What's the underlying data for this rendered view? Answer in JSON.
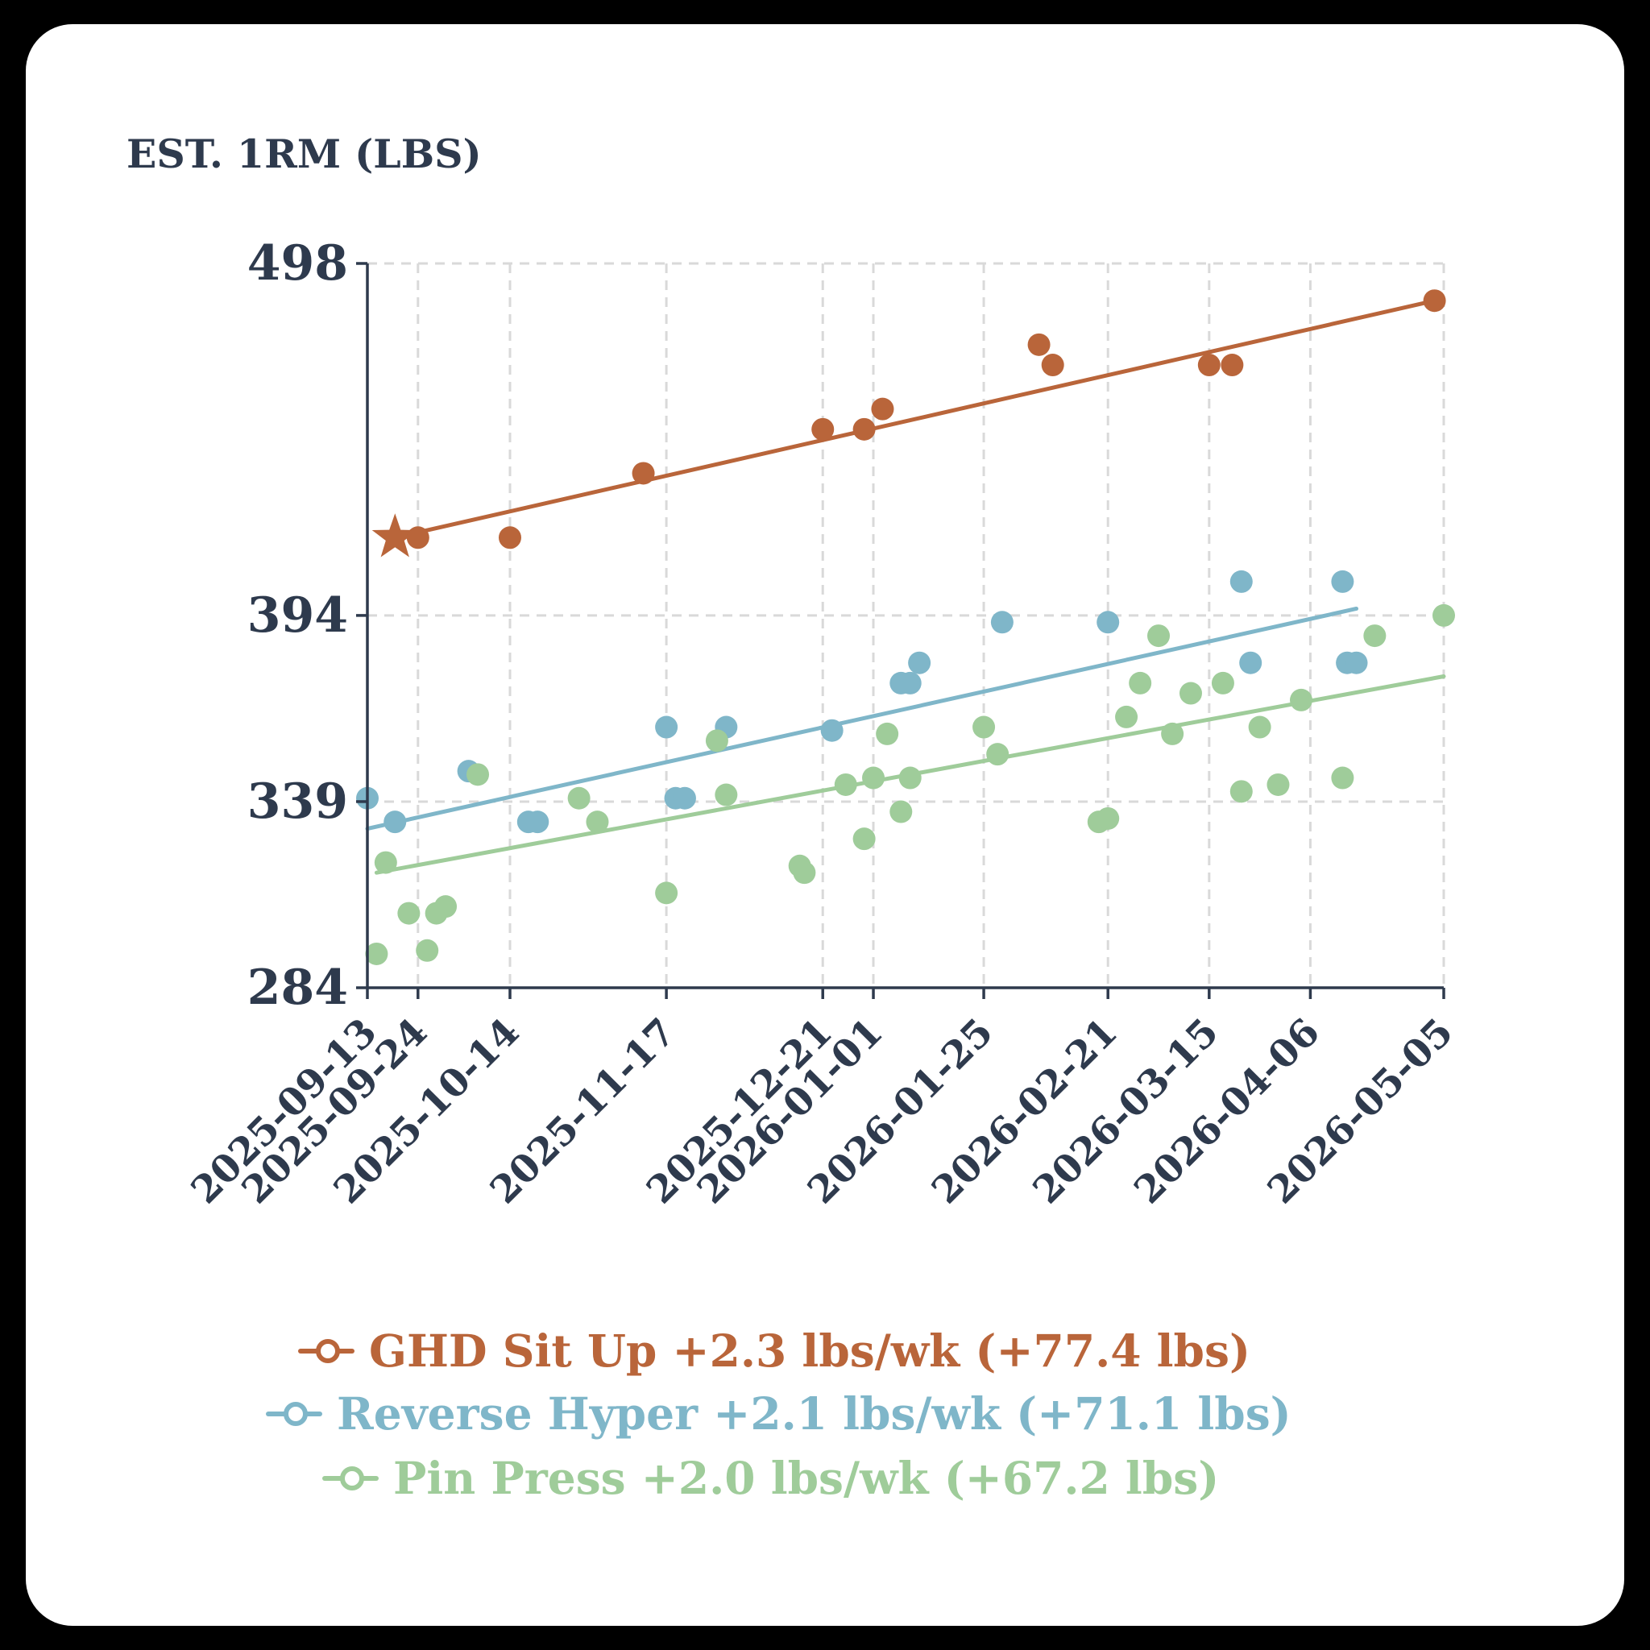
{
  "chart_data": {
    "type": "scatter",
    "ylabel": "EST. 1RM (LBS)",
    "yticks": [
      284,
      339,
      394,
      498
    ],
    "ylim": [
      284,
      498
    ],
    "xlim": [
      "2025-09-13",
      "2026-05-05"
    ],
    "xticks": [
      "2025-09-13",
      "2025-09-24",
      "2025-10-14",
      "2025-11-17",
      "2025-12-21",
      "2026-01-01",
      "2026-01-25",
      "2026-02-21",
      "2026-03-15",
      "2026-04-06",
      "2026-05-05"
    ],
    "grid": true,
    "legend_position": "bottom",
    "series": [
      {
        "name": "GHD Sit Up",
        "legend_label": "GHD Sit Up +2.3 lbs/wk (+77.4 lbs)",
        "color": "#b9653a",
        "highlight_marker": "star",
        "points": [
          [
            "2025-09-19",
            417
          ],
          [
            "2025-09-24",
            417
          ],
          [
            "2025-10-14",
            417
          ],
          [
            "2025-11-12",
            436
          ],
          [
            "2025-12-21",
            449
          ],
          [
            "2025-12-30",
            449
          ],
          [
            "2026-01-03",
            455
          ],
          [
            "2026-02-06",
            474
          ],
          [
            "2026-02-09",
            468
          ],
          [
            "2026-03-15",
            468
          ],
          [
            "2026-03-20",
            468
          ],
          [
            "2026-05-03",
            487
          ]
        ],
        "trend": [
          [
            "2025-09-19",
            417
          ],
          [
            "2026-05-03",
            487
          ]
        ]
      },
      {
        "name": "Reverse Hyper",
        "legend_label": "Reverse Hyper +2.1 lbs/wk (+71.1 lbs)",
        "color": "#7fb6c9",
        "points": [
          [
            "2025-09-13",
            340
          ],
          [
            "2025-09-19",
            333
          ],
          [
            "2025-10-05",
            348
          ],
          [
            "2025-10-18",
            333
          ],
          [
            "2025-10-20",
            333
          ],
          [
            "2025-11-17",
            361
          ],
          [
            "2025-11-19",
            340
          ],
          [
            "2025-11-21",
            340
          ],
          [
            "2025-11-30",
            361
          ],
          [
            "2025-12-23",
            360
          ],
          [
            "2026-01-07",
            374
          ],
          [
            "2026-01-09",
            374
          ],
          [
            "2026-01-11",
            380
          ],
          [
            "2026-01-29",
            392
          ],
          [
            "2026-02-21",
            392
          ],
          [
            "2026-03-22",
            404
          ],
          [
            "2026-03-24",
            380
          ],
          [
            "2026-04-13",
            404
          ],
          [
            "2026-04-14",
            380
          ],
          [
            "2026-04-16",
            380
          ]
        ],
        "trend": [
          [
            "2025-09-13",
            331
          ],
          [
            "2026-04-16",
            396
          ]
        ]
      },
      {
        "name": "Pin Press",
        "legend_label": "Pin Press +2.0 lbs/wk (+67.2 lbs)",
        "color": "#9fcc9a",
        "points": [
          [
            "2025-09-15",
            294
          ],
          [
            "2025-09-17",
            321
          ],
          [
            "2025-09-22",
            306
          ],
          [
            "2025-09-26",
            295
          ],
          [
            "2025-09-28",
            306
          ],
          [
            "2025-09-30",
            308
          ],
          [
            "2025-10-07",
            347
          ],
          [
            "2025-10-29",
            340
          ],
          [
            "2025-11-02",
            333
          ],
          [
            "2025-11-17",
            312
          ],
          [
            "2025-11-28",
            357
          ],
          [
            "2025-11-30",
            341
          ],
          [
            "2025-12-16",
            320
          ],
          [
            "2025-12-17",
            318
          ],
          [
            "2025-12-26",
            344
          ],
          [
            "2025-12-30",
            328
          ],
          [
            "2026-01-01",
            346
          ],
          [
            "2026-01-04",
            359
          ],
          [
            "2026-01-07",
            336
          ],
          [
            "2026-01-09",
            346
          ],
          [
            "2026-01-25",
            361
          ],
          [
            "2026-01-28",
            353
          ],
          [
            "2026-02-19",
            333
          ],
          [
            "2026-02-21",
            334
          ],
          [
            "2026-02-25",
            364
          ],
          [
            "2026-02-28",
            374
          ],
          [
            "2026-03-04",
            388
          ],
          [
            "2026-03-07",
            359
          ],
          [
            "2026-03-11",
            371
          ],
          [
            "2026-03-18",
            374
          ],
          [
            "2026-03-22",
            342
          ],
          [
            "2026-03-26",
            361
          ],
          [
            "2026-03-30",
            344
          ],
          [
            "2026-04-04",
            369
          ],
          [
            "2026-04-13",
            346
          ],
          [
            "2026-04-20",
            388
          ],
          [
            "2026-05-05",
            394
          ]
        ],
        "trend": [
          [
            "2025-09-15",
            318
          ],
          [
            "2026-05-05",
            376
          ]
        ]
      }
    ]
  }
}
